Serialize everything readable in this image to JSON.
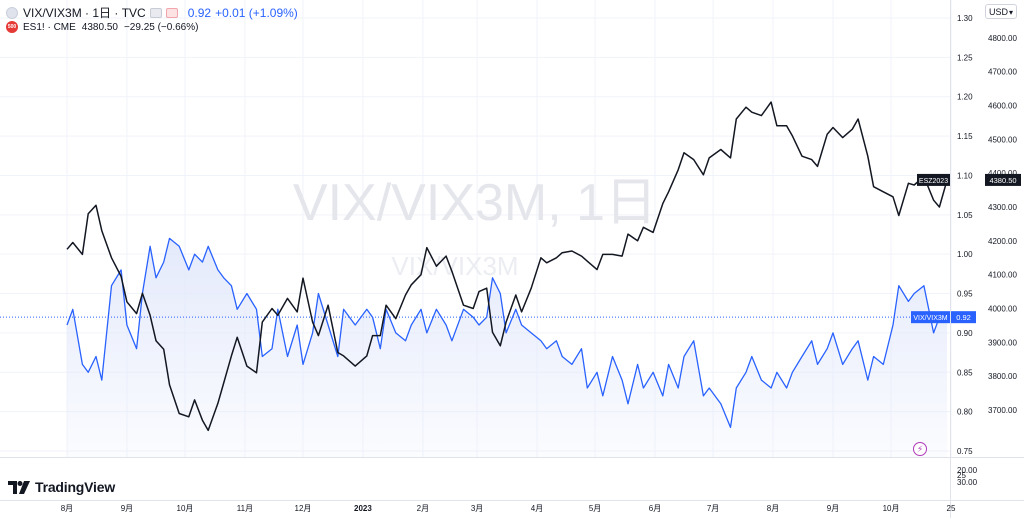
{
  "watermark": "VIX/VIX3M, 1日",
  "watermark_secondary": "VIX/VIX3M",
  "legend": {
    "main": {
      "symbol": "VIX/VIX3M · 1日 · TVC",
      "value": "0.92",
      "change": "+0.01 (+1.09%)"
    },
    "compare": {
      "symbol": "ES1! · CME",
      "value": "4380.50",
      "change": "−29.25 (−0.66%)"
    }
  },
  "currency": "USD",
  "logo_text": "TradingView",
  "colors": {
    "vix": "#2962ff",
    "es": "#131722",
    "fill": "#e3e9fb",
    "grid": "#f0f3fa"
  },
  "chart_data": {
    "type": "line",
    "time_axis": [
      "8月",
      "9月",
      "10月",
      "11月",
      "12月",
      "2023",
      "2月",
      "3月",
      "4月",
      "5月",
      "6月",
      "7月",
      "8月",
      "9月",
      "10月",
      "25"
    ],
    "right_axis_ratio": {
      "ticks": [
        "1.30",
        "1.25",
        "1.20",
        "1.15",
        "1.10",
        "1.05",
        "1.00",
        "0.95",
        "0.90",
        "0.85",
        "0.80",
        "0.75"
      ],
      "range": [
        0.75,
        1.3
      ]
    },
    "right_axis_price": {
      "ticks": [
        "4800.00",
        "4700.00",
        "4600.00",
        "4500.00",
        "4400.00",
        "4300.00",
        "4200.00",
        "4100.00",
        "4000.00",
        "3900.00",
        "3800.00",
        "3700.00"
      ],
      "range": [
        3650,
        4820
      ]
    },
    "lower_pane_ticks": [
      "20.00",
      "25",
      "30.00"
    ],
    "series": [
      {
        "name": "VIX/VIX3M",
        "axis": "ratio",
        "label": "VIX/VIX3M",
        "last_value": "0.92",
        "points": [
          [
            "2022-08-01",
            0.91
          ],
          [
            "2022-08-04",
            0.93
          ],
          [
            "2022-08-09",
            0.86
          ],
          [
            "2022-08-12",
            0.85
          ],
          [
            "2022-08-16",
            0.87
          ],
          [
            "2022-08-19",
            0.84
          ],
          [
            "2022-08-24",
            0.96
          ],
          [
            "2022-08-29",
            0.98
          ],
          [
            "2022-09-01",
            0.91
          ],
          [
            "2022-09-06",
            0.88
          ],
          [
            "2022-09-09",
            0.95
          ],
          [
            "2022-09-13",
            1.01
          ],
          [
            "2022-09-16",
            0.97
          ],
          [
            "2022-09-20",
            0.99
          ],
          [
            "2022-09-23",
            1.02
          ],
          [
            "2022-09-28",
            1.01
          ],
          [
            "2022-10-03",
            0.98
          ],
          [
            "2022-10-06",
            1.0
          ],
          [
            "2022-10-10",
            0.99
          ],
          [
            "2022-10-13",
            1.01
          ],
          [
            "2022-10-18",
            0.98
          ],
          [
            "2022-10-21",
            0.97
          ],
          [
            "2022-10-25",
            0.96
          ],
          [
            "2022-10-28",
            0.93
          ],
          [
            "2022-11-02",
            0.95
          ],
          [
            "2022-11-07",
            0.93
          ],
          [
            "2022-11-10",
            0.87
          ],
          [
            "2022-11-15",
            0.88
          ],
          [
            "2022-11-18",
            0.93
          ],
          [
            "2022-11-23",
            0.87
          ],
          [
            "2022-11-28",
            0.91
          ],
          [
            "2022-12-01",
            0.86
          ],
          [
            "2022-12-06",
            0.9
          ],
          [
            "2022-12-09",
            0.95
          ],
          [
            "2022-12-14",
            0.91
          ],
          [
            "2022-12-19",
            0.87
          ],
          [
            "2022-12-22",
            0.93
          ],
          [
            "2022-12-28",
            0.91
          ],
          [
            "2023-01-03",
            0.93
          ],
          [
            "2023-01-06",
            0.92
          ],
          [
            "2023-01-10",
            0.88
          ],
          [
            "2023-01-13",
            0.93
          ],
          [
            "2023-01-18",
            0.9
          ],
          [
            "2023-01-23",
            0.89
          ],
          [
            "2023-01-26",
            0.91
          ],
          [
            "2023-01-31",
            0.93
          ],
          [
            "2023-02-03",
            0.9
          ],
          [
            "2023-02-08",
            0.93
          ],
          [
            "2023-02-13",
            0.91
          ],
          [
            "2023-02-16",
            0.89
          ],
          [
            "2023-02-22",
            0.93
          ],
          [
            "2023-02-27",
            0.92
          ],
          [
            "2023-03-02",
            0.91
          ],
          [
            "2023-03-06",
            0.92
          ],
          [
            "2023-03-09",
            0.97
          ],
          [
            "2023-03-13",
            0.95
          ],
          [
            "2023-03-16",
            0.9
          ],
          [
            "2023-03-21",
            0.93
          ],
          [
            "2023-03-24",
            0.91
          ],
          [
            "2023-03-29",
            0.9
          ],
          [
            "2023-04-03",
            0.89
          ],
          [
            "2023-04-06",
            0.88
          ],
          [
            "2023-04-11",
            0.89
          ],
          [
            "2023-04-14",
            0.87
          ],
          [
            "2023-04-19",
            0.86
          ],
          [
            "2023-04-24",
            0.88
          ],
          [
            "2023-04-27",
            0.83
          ],
          [
            "2023-05-02",
            0.85
          ],
          [
            "2023-05-05",
            0.82
          ],
          [
            "2023-05-10",
            0.87
          ],
          [
            "2023-05-15",
            0.84
          ],
          [
            "2023-05-18",
            0.81
          ],
          [
            "2023-05-23",
            0.86
          ],
          [
            "2023-05-26",
            0.83
          ],
          [
            "2023-05-31",
            0.85
          ],
          [
            "2023-06-05",
            0.82
          ],
          [
            "2023-06-08",
            0.86
          ],
          [
            "2023-06-13",
            0.83
          ],
          [
            "2023-06-16",
            0.87
          ],
          [
            "2023-06-21",
            0.89
          ],
          [
            "2023-06-26",
            0.82
          ],
          [
            "2023-06-29",
            0.83
          ],
          [
            "2023-07-05",
            0.81
          ],
          [
            "2023-07-10",
            0.78
          ],
          [
            "2023-07-13",
            0.83
          ],
          [
            "2023-07-18",
            0.85
          ],
          [
            "2023-07-21",
            0.87
          ],
          [
            "2023-07-26",
            0.84
          ],
          [
            "2023-07-31",
            0.83
          ],
          [
            "2023-08-03",
            0.85
          ],
          [
            "2023-08-08",
            0.83
          ],
          [
            "2023-08-11",
            0.85
          ],
          [
            "2023-08-16",
            0.87
          ],
          [
            "2023-08-21",
            0.89
          ],
          [
            "2023-08-24",
            0.86
          ],
          [
            "2023-08-29",
            0.88
          ],
          [
            "2023-09-01",
            0.9
          ],
          [
            "2023-09-06",
            0.86
          ],
          [
            "2023-09-11",
            0.88
          ],
          [
            "2023-09-14",
            0.89
          ],
          [
            "2023-09-19",
            0.84
          ],
          [
            "2023-09-22",
            0.87
          ],
          [
            "2023-09-27",
            0.86
          ],
          [
            "2023-10-02",
            0.91
          ],
          [
            "2023-10-05",
            0.96
          ],
          [
            "2023-10-10",
            0.94
          ],
          [
            "2023-10-13",
            0.95
          ],
          [
            "2023-10-18",
            0.96
          ],
          [
            "2023-10-23",
            0.9
          ],
          [
            "2023-10-26",
            0.92
          ],
          [
            "2023-10-30",
            0.92
          ]
        ]
      },
      {
        "name": "ES1!",
        "axis": "price",
        "label": "ESZ2023",
        "last_value": "4380.50",
        "points": [
          [
            "2022-08-01",
            4175
          ],
          [
            "2022-08-04",
            4195
          ],
          [
            "2022-08-09",
            4160
          ],
          [
            "2022-08-12",
            4280
          ],
          [
            "2022-08-16",
            4305
          ],
          [
            "2022-08-19",
            4230
          ],
          [
            "2022-08-24",
            4150
          ],
          [
            "2022-08-29",
            4095
          ],
          [
            "2022-09-01",
            4020
          ],
          [
            "2022-09-06",
            3985
          ],
          [
            "2022-09-09",
            4045
          ],
          [
            "2022-09-13",
            3980
          ],
          [
            "2022-09-16",
            3905
          ],
          [
            "2022-09-20",
            3880
          ],
          [
            "2022-09-23",
            3775
          ],
          [
            "2022-09-28",
            3690
          ],
          [
            "2022-10-03",
            3680
          ],
          [
            "2022-10-06",
            3730
          ],
          [
            "2022-10-10",
            3670
          ],
          [
            "2022-10-13",
            3640
          ],
          [
            "2022-10-18",
            3720
          ],
          [
            "2022-10-21",
            3780
          ],
          [
            "2022-10-25",
            3860
          ],
          [
            "2022-10-28",
            3915
          ],
          [
            "2022-11-02",
            3830
          ],
          [
            "2022-11-07",
            3810
          ],
          [
            "2022-11-10",
            3960
          ],
          [
            "2022-11-15",
            4000
          ],
          [
            "2022-11-18",
            3980
          ],
          [
            "2022-11-23",
            4030
          ],
          [
            "2022-11-28",
            3990
          ],
          [
            "2022-12-01",
            4090
          ],
          [
            "2022-12-06",
            3960
          ],
          [
            "2022-12-09",
            3920
          ],
          [
            "2022-12-14",
            4010
          ],
          [
            "2022-12-19",
            3870
          ],
          [
            "2022-12-22",
            3860
          ],
          [
            "2022-12-28",
            3830
          ],
          [
            "2023-01-03",
            3860
          ],
          [
            "2023-01-06",
            3920
          ],
          [
            "2023-01-10",
            3920
          ],
          [
            "2023-01-13",
            4010
          ],
          [
            "2023-01-18",
            3970
          ],
          [
            "2023-01-23",
            4040
          ],
          [
            "2023-01-26",
            4070
          ],
          [
            "2023-01-31",
            4100
          ],
          [
            "2023-02-03",
            4180
          ],
          [
            "2023-02-08",
            4125
          ],
          [
            "2023-02-13",
            4155
          ],
          [
            "2023-02-16",
            4110
          ],
          [
            "2023-02-22",
            4010
          ],
          [
            "2023-02-27",
            4000
          ],
          [
            "2023-03-02",
            4050
          ],
          [
            "2023-03-06",
            4060
          ],
          [
            "2023-03-09",
            3930
          ],
          [
            "2023-03-13",
            3890
          ],
          [
            "2023-03-16",
            3960
          ],
          [
            "2023-03-21",
            4040
          ],
          [
            "2023-03-24",
            3990
          ],
          [
            "2023-03-29",
            4060
          ],
          [
            "2023-04-03",
            4150
          ],
          [
            "2023-04-06",
            4135
          ],
          [
            "2023-04-11",
            4150
          ],
          [
            "2023-04-14",
            4165
          ],
          [
            "2023-04-19",
            4170
          ],
          [
            "2023-04-24",
            4155
          ],
          [
            "2023-04-27",
            4140
          ],
          [
            "2023-05-02",
            4115
          ],
          [
            "2023-05-05",
            4160
          ],
          [
            "2023-05-10",
            4160
          ],
          [
            "2023-05-15",
            4155
          ],
          [
            "2023-05-18",
            4220
          ],
          [
            "2023-05-23",
            4200
          ],
          [
            "2023-05-26",
            4240
          ],
          [
            "2023-05-31",
            4225
          ],
          [
            "2023-06-05",
            4310
          ],
          [
            "2023-06-08",
            4345
          ],
          [
            "2023-06-13",
            4410
          ],
          [
            "2023-06-16",
            4460
          ],
          [
            "2023-06-21",
            4440
          ],
          [
            "2023-06-26",
            4395
          ],
          [
            "2023-06-29",
            4445
          ],
          [
            "2023-07-05",
            4470
          ],
          [
            "2023-07-10",
            4445
          ],
          [
            "2023-07-13",
            4560
          ],
          [
            "2023-07-18",
            4595
          ],
          [
            "2023-07-21",
            4580
          ],
          [
            "2023-07-26",
            4570
          ],
          [
            "2023-07-31",
            4610
          ],
          [
            "2023-08-03",
            4540
          ],
          [
            "2023-08-08",
            4540
          ],
          [
            "2023-08-11",
            4510
          ],
          [
            "2023-08-16",
            4450
          ],
          [
            "2023-08-21",
            4440
          ],
          [
            "2023-08-24",
            4420
          ],
          [
            "2023-08-29",
            4515
          ],
          [
            "2023-09-01",
            4535
          ],
          [
            "2023-09-06",
            4505
          ],
          [
            "2023-09-11",
            4530
          ],
          [
            "2023-09-14",
            4560
          ],
          [
            "2023-09-19",
            4450
          ],
          [
            "2023-09-22",
            4360
          ],
          [
            "2023-09-27",
            4345
          ],
          [
            "2023-10-02",
            4330
          ],
          [
            "2023-10-05",
            4275
          ],
          [
            "2023-10-10",
            4370
          ],
          [
            "2023-10-13",
            4365
          ],
          [
            "2023-10-18",
            4390
          ],
          [
            "2023-10-23",
            4320
          ],
          [
            "2023-10-26",
            4300
          ],
          [
            "2023-10-30",
            4380
          ]
        ]
      }
    ]
  }
}
